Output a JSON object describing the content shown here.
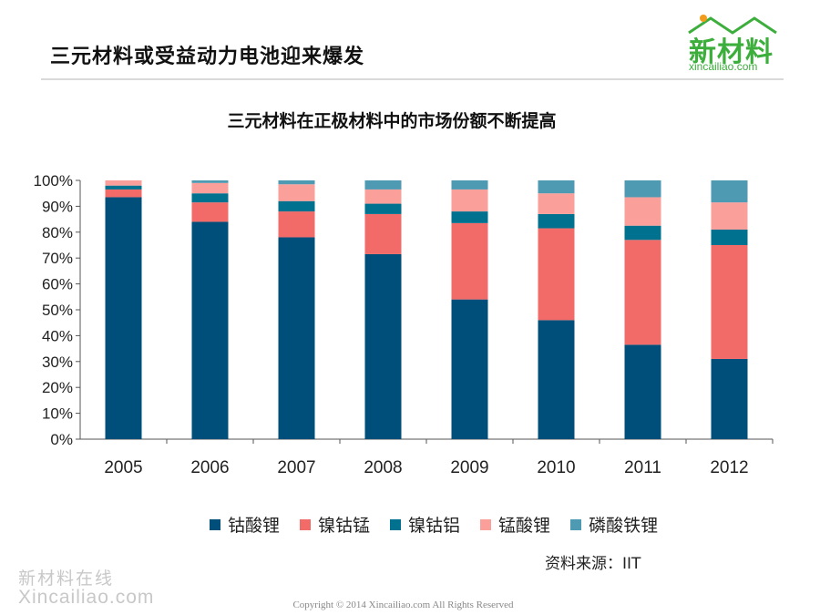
{
  "slide": {
    "title": "三元材料或受益动力电池迎来爆发",
    "logo_text": "新材料",
    "logo_domain": "xincailiao.com",
    "source": "资料来源：IIT",
    "watermark_cn": "新材料在线",
    "watermark_en": "Xincailiao.com",
    "copyright": "Copyright © 2014   Xincailiao.com    All Rights Reserved"
  },
  "chart_data": {
    "type": "bar",
    "stacked": true,
    "title": "三元材料在正极材料中的市场份额不断提高",
    "categories": [
      "2005",
      "2006",
      "2007",
      "2008",
      "2009",
      "2010",
      "2011",
      "2012"
    ],
    "ylim": [
      0,
      100
    ],
    "yticks": [
      "0%",
      "10%",
      "20%",
      "30%",
      "40%",
      "50%",
      "60%",
      "70%",
      "80%",
      "90%",
      "100%"
    ],
    "series": [
      {
        "name": "钴酸锂",
        "color": "#004f7a",
        "values": [
          93.5,
          84,
          78,
          71.5,
          54,
          46,
          36.5,
          31
        ]
      },
      {
        "name": "镍钴锰",
        "color": "#f36b69",
        "values": [
          3,
          7.5,
          10,
          15.5,
          29.5,
          35.5,
          40.5,
          44
        ]
      },
      {
        "name": "镍钴铝",
        "color": "#00718f",
        "values": [
          1.5,
          3.5,
          4,
          4,
          4.5,
          5.5,
          5.5,
          6
        ]
      },
      {
        "name": "锰酸锂",
        "color": "#fa9f9a",
        "values": [
          2,
          4,
          6.5,
          5.5,
          8.5,
          8,
          11,
          10.5
        ]
      },
      {
        "name": "磷酸铁锂",
        "color": "#4e9ab3",
        "values": [
          0,
          1,
          1.5,
          3.5,
          3.5,
          5,
          6.5,
          8.5
        ]
      }
    ]
  }
}
